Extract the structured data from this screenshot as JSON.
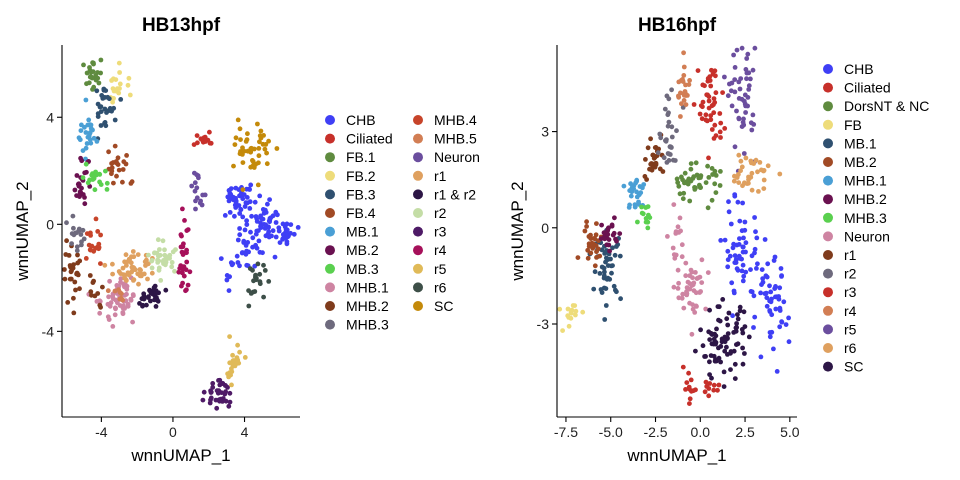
{
  "chart_data": [
    {
      "type": "scatter",
      "title": "HB13hpf",
      "xlabel": "wnnUMAP_1",
      "ylabel": "wnnUMAP_2",
      "xlim": [
        -6.2,
        7.1
      ],
      "ylim": [
        -7.2,
        6.7
      ],
      "xticks": [
        -4,
        0,
        4
      ],
      "xtick_labels": [
        "-4",
        "0",
        "4"
      ],
      "yticks": [
        -4,
        0,
        4
      ],
      "ytick_labels": [
        "-4",
        "0",
        "4"
      ],
      "grid": false,
      "legend_position": "right",
      "legend_columns": 2,
      "series": [
        {
          "name": "CHB",
          "color": "#3F3FF5",
          "clusters": [
            {
              "x": 3.8,
              "y": 0.9,
              "sx": 0.45,
              "sy": 0.35,
              "n": 45
            },
            {
              "x": 5.3,
              "y": 0.1,
              "sx": 0.4,
              "sy": 0.35,
              "n": 40
            },
            {
              "x": 6.3,
              "y": -0.3,
              "sx": 0.3,
              "sy": 0.3,
              "n": 25
            },
            {
              "x": 4.2,
              "y": -0.9,
              "sx": 0.5,
              "sy": 0.45,
              "n": 30
            },
            {
              "x": 3.1,
              "y": -1.8,
              "sx": 0.2,
              "sy": 0.4,
              "n": 8
            }
          ]
        },
        {
          "name": "Ciliated",
          "color": "#C7302A",
          "clusters": [
            {
              "x": 1.7,
              "y": 3.2,
              "sx": 0.3,
              "sy": 0.1,
              "n": 18
            }
          ]
        },
        {
          "name": "FB.1",
          "color": "#5F8B3F",
          "clusters": [
            {
              "x": -4.4,
              "y": 5.7,
              "sx": 0.22,
              "sy": 0.3,
              "n": 25
            }
          ]
        },
        {
          "name": "FB.2",
          "color": "#EEDC7A",
          "clusters": [
            {
              "x": -2.9,
              "y": 5.1,
              "sx": 0.35,
              "sy": 0.4,
              "n": 18
            }
          ]
        },
        {
          "name": "FB.3",
          "color": "#2F5070",
          "clusters": [
            {
              "x": -3.8,
              "y": 4.3,
              "sx": 0.3,
              "sy": 0.5,
              "n": 28
            }
          ]
        },
        {
          "name": "FB.4",
          "color": "#A14A25",
          "clusters": [
            {
              "x": -3.0,
              "y": 2.3,
              "sx": 0.35,
              "sy": 0.4,
              "n": 22
            }
          ]
        },
        {
          "name": "MB.1",
          "color": "#4A9FD5",
          "clusters": [
            {
              "x": -4.7,
              "y": 3.4,
              "sx": 0.25,
              "sy": 0.45,
              "n": 25
            }
          ]
        },
        {
          "name": "MB.2",
          "color": "#6A1150",
          "clusters": [
            {
              "x": -5.1,
              "y": 1.5,
              "sx": 0.2,
              "sy": 0.45,
              "n": 25
            }
          ]
        },
        {
          "name": "MB.3",
          "color": "#5AD04F",
          "clusters": [
            {
              "x": -4.3,
              "y": 1.7,
              "sx": 0.3,
              "sy": 0.28,
              "n": 20
            }
          ]
        },
        {
          "name": "MHB.1",
          "color": "#CE84A2",
          "clusters": [
            {
              "x": -3.0,
              "y": -2.8,
              "sx": 0.5,
              "sy": 0.35,
              "n": 55
            }
          ]
        },
        {
          "name": "MHB.2",
          "color": "#7F3B1C",
          "clusters": [
            {
              "x": -5.6,
              "y": -1.6,
              "sx": 0.22,
              "sy": 0.5,
              "n": 28
            },
            {
              "x": -4.4,
              "y": -2.5,
              "sx": 0.3,
              "sy": 0.35,
              "n": 10
            }
          ]
        },
        {
          "name": "MHB.3",
          "color": "#6E6A7D",
          "clusters": [
            {
              "x": -5.3,
              "y": -0.4,
              "sx": 0.25,
              "sy": 0.35,
              "n": 18
            }
          ]
        },
        {
          "name": "MHB.4",
          "color": "#C7442A",
          "clusters": [
            {
              "x": -4.4,
              "y": -0.7,
              "sx": 0.25,
              "sy": 0.4,
              "n": 18
            }
          ]
        },
        {
          "name": "MHB.5",
          "color": "#D27E54",
          "clusters": [
            {
              "x": -3.1,
              "y": -2.6,
              "sx": 0.2,
              "sy": 0.25,
              "n": 8
            }
          ]
        },
        {
          "name": "Neuron",
          "color": "#6B4E9E",
          "clusters": [
            {
              "x": 1.2,
              "y": 1.5,
              "sx": 0.15,
              "sy": 0.2,
              "n": 8
            },
            {
              "x": 1.5,
              "y": 0.8,
              "sx": 0.15,
              "sy": 0.2,
              "n": 8
            }
          ]
        },
        {
          "name": "r1",
          "color": "#DFA05F",
          "clusters": [
            {
              "x": -2.3,
              "y": -1.6,
              "sx": 0.55,
              "sy": 0.35,
              "n": 50
            }
          ]
        },
        {
          "name": "r1 & r2",
          "color": "#2D1646",
          "clusters": [
            {
              "x": -1.2,
              "y": -2.7,
              "sx": 0.35,
              "sy": 0.3,
              "n": 28
            }
          ]
        },
        {
          "name": "r2",
          "color": "#C4DDA6",
          "clusters": [
            {
              "x": -0.5,
              "y": -1.3,
              "sx": 0.4,
              "sy": 0.35,
              "n": 35
            }
          ]
        },
        {
          "name": "r3",
          "color": "#4E1A66",
          "clusters": [
            {
              "x": 2.5,
              "y": -6.3,
              "sx": 0.35,
              "sy": 0.3,
              "n": 35
            }
          ]
        },
        {
          "name": "r4",
          "color": "#A6105A",
          "clusters": [
            {
              "x": 0.6,
              "y": -1.5,
              "sx": 0.18,
              "sy": 0.7,
              "n": 30
            }
          ]
        },
        {
          "name": "r5",
          "color": "#E0BA58",
          "clusters": [
            {
              "x": 3.4,
              "y": -5.1,
              "sx": 0.25,
              "sy": 0.4,
              "n": 28
            }
          ]
        },
        {
          "name": "r6",
          "color": "#3D4F48",
          "clusters": [
            {
              "x": 4.6,
              "y": -2.2,
              "sx": 0.3,
              "sy": 0.35,
              "n": 20
            }
          ]
        },
        {
          "name": "SC",
          "color": "#C48A0A",
          "clusters": [
            {
              "x": 4.5,
              "y": 2.8,
              "sx": 0.5,
              "sy": 0.5,
              "n": 45
            }
          ]
        }
      ]
    },
    {
      "type": "scatter",
      "title": "HB16hpf",
      "xlabel": "wnnUMAP_1",
      "ylabel": "wnnUMAP_2",
      "xlim": [
        -8.0,
        5.4
      ],
      "ylim": [
        -5.9,
        5.7
      ],
      "xticks": [
        -7.5,
        -5.0,
        -2.5,
        0.0,
        2.5,
        5.0
      ],
      "xtick_labels": [
        "-7.5",
        "-5.0",
        "-2.5",
        "0.0",
        "2.5",
        "5.0"
      ],
      "yticks": [
        -3,
        0,
        3
      ],
      "ytick_labels": [
        "-3",
        "0",
        "3"
      ],
      "grid": false,
      "legend_position": "right",
      "legend_columns": 1,
      "series": [
        {
          "name": "CHB",
          "color": "#3F3FF5",
          "clusters": [
            {
              "x": 2.3,
              "y": -0.7,
              "sx": 0.5,
              "sy": 0.8,
              "n": 55
            },
            {
              "x": 3.9,
              "y": -2.6,
              "sx": 0.5,
              "sy": 0.8,
              "n": 55
            }
          ]
        },
        {
          "name": "Ciliated",
          "color": "#C7302A",
          "clusters": [
            {
              "x": -0.7,
              "y": -5.0,
              "sx": 0.25,
              "sy": 0.25,
              "n": 12
            },
            {
              "x": 0.6,
              "y": -5.0,
              "sx": 0.3,
              "sy": 0.1,
              "n": 10
            }
          ]
        },
        {
          "name": "DorsNT & NC",
          "color": "#5F8B3F",
          "clusters": [
            {
              "x": -0.3,
              "y": 1.4,
              "sx": 0.7,
              "sy": 0.3,
              "n": 45
            }
          ]
        },
        {
          "name": "FB",
          "color": "#EEDC7A",
          "clusters": [
            {
              "x": -7.2,
              "y": -2.6,
              "sx": 0.3,
              "sy": 0.25,
              "n": 15
            }
          ]
        },
        {
          "name": "MB.1",
          "color": "#2F5070",
          "clusters": [
            {
              "x": -5.2,
              "y": -1.2,
              "sx": 0.4,
              "sy": 0.5,
              "n": 50
            }
          ]
        },
        {
          "name": "MB.2",
          "color": "#A14A25",
          "clusters": [
            {
              "x": -6.0,
              "y": -0.4,
              "sx": 0.35,
              "sy": 0.3,
              "n": 30
            }
          ]
        },
        {
          "name": "MHB.1",
          "color": "#4A9FD5",
          "clusters": [
            {
              "x": -3.6,
              "y": 1.0,
              "sx": 0.35,
              "sy": 0.35,
              "n": 28
            }
          ]
        },
        {
          "name": "MHB.2",
          "color": "#6A1150",
          "clusters": [
            {
              "x": -5.0,
              "y": -0.2,
              "sx": 0.3,
              "sy": 0.3,
              "n": 22
            }
          ]
        },
        {
          "name": "MHB.3",
          "color": "#5AD04F",
          "clusters": [
            {
              "x": -3.0,
              "y": 0.4,
              "sx": 0.2,
              "sy": 0.2,
              "n": 12
            }
          ]
        },
        {
          "name": "Neuron",
          "color": "#CE84A2",
          "clusters": [
            {
              "x": -1.4,
              "y": 0.0,
              "sx": 0.2,
              "sy": 0.5,
              "n": 12
            },
            {
              "x": -0.5,
              "y": -1.8,
              "sx": 0.45,
              "sy": 0.45,
              "n": 45
            }
          ]
        },
        {
          "name": "r1",
          "color": "#7F3B1C",
          "clusters": [
            {
              "x": -2.6,
              "y": 2.2,
              "sx": 0.3,
              "sy": 0.4,
              "n": 30
            }
          ]
        },
        {
          "name": "r2",
          "color": "#6E6A7D",
          "clusters": [
            {
              "x": -1.7,
              "y": 2.8,
              "sx": 0.3,
              "sy": 0.55,
              "n": 30
            }
          ]
        },
        {
          "name": "r3",
          "color": "#C7302A",
          "clusters": [
            {
              "x": 0.6,
              "y": 3.8,
              "sx": 0.35,
              "sy": 0.7,
              "n": 45
            }
          ]
        },
        {
          "name": "r4",
          "color": "#D27E54",
          "clusters": [
            {
              "x": -0.9,
              "y": 4.3,
              "sx": 0.2,
              "sy": 0.55,
              "n": 25
            }
          ]
        },
        {
          "name": "r5",
          "color": "#6B4E9E",
          "clusters": [
            {
              "x": 2.4,
              "y": 4.0,
              "sx": 0.35,
              "sy": 0.8,
              "n": 50
            }
          ]
        },
        {
          "name": "r6",
          "color": "#DFA05F",
          "clusters": [
            {
              "x": 2.8,
              "y": 1.7,
              "sx": 0.6,
              "sy": 0.3,
              "n": 35
            }
          ]
        },
        {
          "name": "SC",
          "color": "#2D1646",
          "clusters": [
            {
              "x": 1.3,
              "y": -3.6,
              "sx": 0.7,
              "sy": 0.55,
              "n": 80
            }
          ]
        }
      ]
    }
  ]
}
